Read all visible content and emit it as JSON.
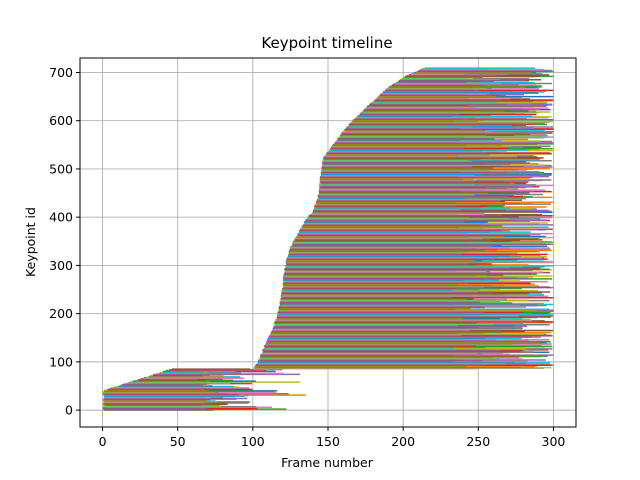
{
  "chart_data": {
    "type": "line",
    "title": "Keypoint timeline",
    "xlabel": "Frame number",
    "ylabel": "Keypoint id",
    "xlim": [
      -15,
      315
    ],
    "ylim": [
      -35,
      730
    ],
    "xticks": [
      0,
      50,
      100,
      150,
      200,
      250,
      300
    ],
    "yticks": [
      0,
      100,
      200,
      300,
      400,
      500,
      600,
      700
    ],
    "grid": true,
    "n_series": 710,
    "series_color_cycle": [
      "#1f77b4",
      "#ff7f0e",
      "#2ca02c",
      "#d62728",
      "#9467bd",
      "#8c564b",
      "#e377c2",
      "#7f7f7f",
      "#bcbd22",
      "#17becf"
    ],
    "segments": {
      "description_of_groups": [
        {
          "id_range": [
            0,
            85
          ],
          "start_frame_range": [
            0,
            45
          ],
          "end_frame_range": [
            62,
            138
          ]
        },
        {
          "id_range": [
            86,
            710
          ],
          "start_frame_range": [
            100,
            215
          ],
          "end_frame_range": [
            235,
            302
          ]
        }
      ]
    }
  }
}
